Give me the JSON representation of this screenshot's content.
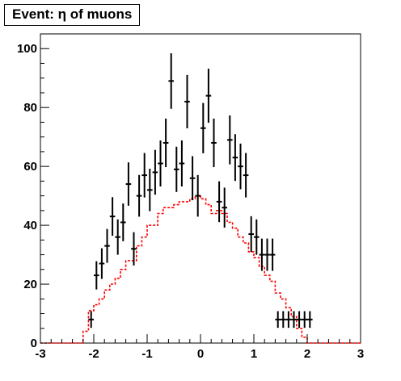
{
  "chart_data": {
    "type": "histogram",
    "title": "Event: η of muons",
    "xlim": [
      -3,
      3
    ],
    "ylim": [
      0,
      105
    ],
    "x_ticks": [
      "-3",
      "-2",
      "-1",
      "0",
      "1",
      "2",
      "3"
    ],
    "y_ticks": [
      "0",
      "20",
      "40",
      "60",
      "80",
      "100"
    ],
    "grid": false,
    "bin_width": 0.1,
    "series": [
      {
        "style": "data points with error bars",
        "color": "#000000",
        "x": [
          -2.05,
          -1.95,
          -1.85,
          -1.75,
          -1.65,
          -1.55,
          -1.45,
          -1.35,
          -1.25,
          -1.15,
          -1.05,
          -0.95,
          -0.85,
          -0.75,
          -0.65,
          -0.55,
          -0.45,
          -0.35,
          -0.25,
          -0.15,
          -0.05,
          0.05,
          0.15,
          0.25,
          0.35,
          0.45,
          0.55,
          0.65,
          0.75,
          0.85,
          0.95,
          1.05,
          1.15,
          1.25,
          1.35,
          1.45,
          1.55,
          1.65,
          1.75,
          1.85,
          1.95,
          2.05
        ],
        "y": [
          8,
          23,
          27,
          33,
          43,
          36,
          41,
          54,
          32,
          50,
          57,
          52,
          58,
          61,
          68,
          89,
          59,
          61,
          82,
          56,
          50,
          73,
          84,
          68,
          48,
          46,
          69,
          63,
          60,
          57,
          37,
          36,
          30,
          30,
          30,
          8,
          8,
          8,
          8,
          8,
          8,
          8
        ]
      },
      {
        "style": "dashed step line",
        "color": "#ff0000",
        "x": [
          -2.95,
          -2.85,
          -2.75,
          -2.65,
          -2.55,
          -2.45,
          -2.35,
          -2.25,
          -2.15,
          -2.05,
          -1.95,
          -1.85,
          -1.75,
          -1.65,
          -1.55,
          -1.45,
          -1.35,
          -1.25,
          -1.15,
          -1.05,
          -0.95,
          -0.85,
          -0.75,
          -0.65,
          -0.55,
          -0.45,
          -0.35,
          -0.25,
          -0.15,
          -0.05,
          0.05,
          0.15,
          0.25,
          0.35,
          0.45,
          0.55,
          0.65,
          0.75,
          0.85,
          0.95,
          1.05,
          1.15,
          1.25,
          1.35,
          1.45,
          1.55,
          1.65,
          1.75,
          1.85,
          1.95,
          2.05,
          2.15,
          2.25,
          2.35,
          2.45,
          2.55,
          2.65,
          2.75,
          2.85,
          2.95
        ],
        "y": [
          0,
          0,
          0,
          0,
          0,
          0,
          0,
          0,
          4,
          11,
          13,
          15,
          18,
          20,
          22,
          25,
          28,
          28,
          33,
          36,
          40,
          40,
          44,
          46,
          46,
          47,
          48,
          48,
          49,
          50,
          49,
          47,
          44,
          45,
          44,
          41,
          39,
          36,
          34,
          31,
          29,
          26,
          23,
          21,
          17,
          15,
          12,
          9,
          5,
          2,
          0,
          0,
          0,
          0,
          0,
          0,
          0,
          0,
          0,
          0
        ]
      }
    ]
  }
}
